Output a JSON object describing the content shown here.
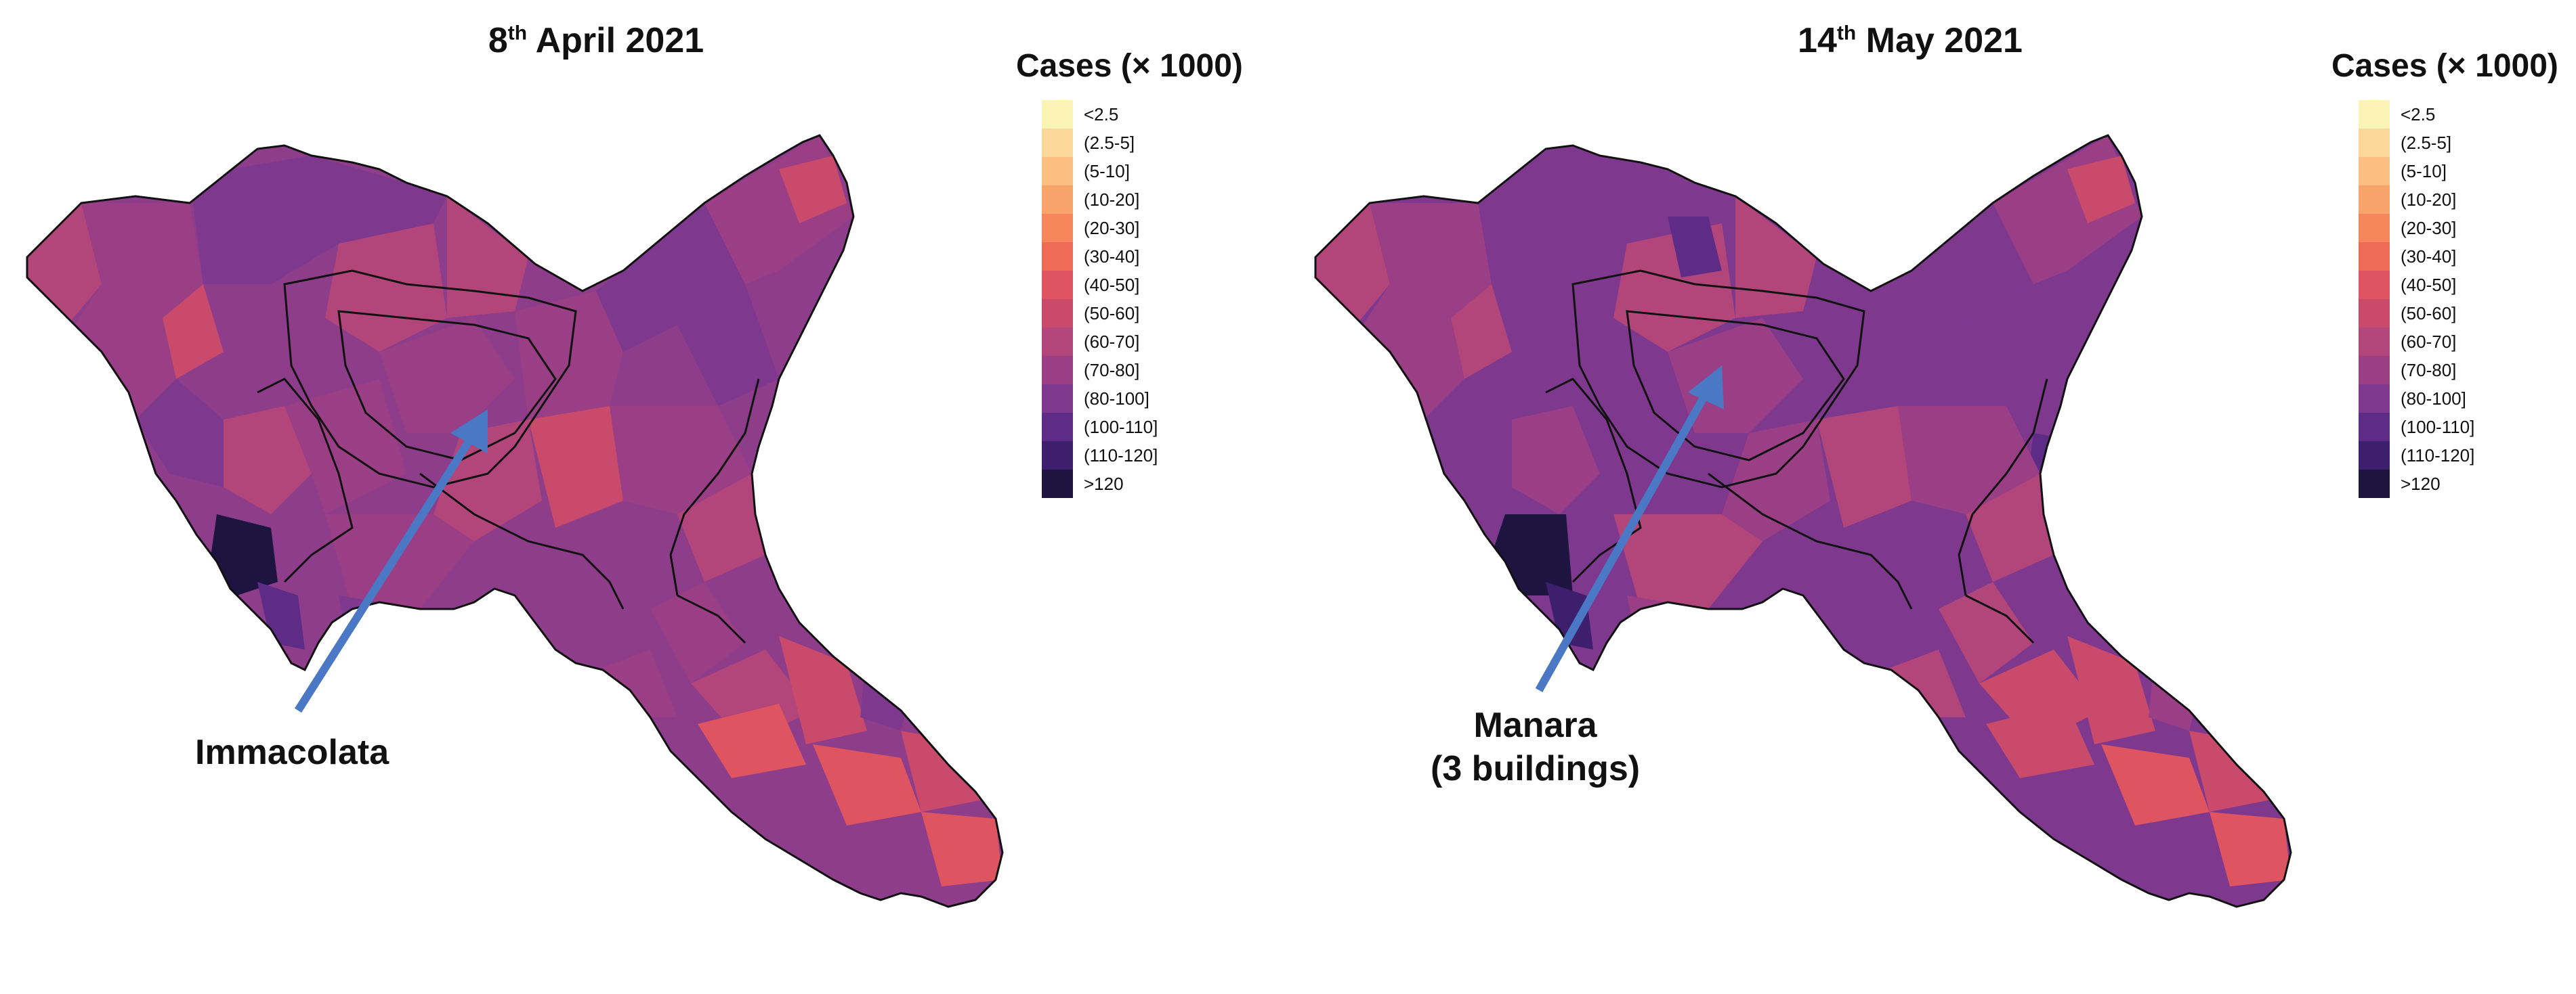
{
  "legend": {
    "title": "Cases (× 1000)",
    "items": [
      {
        "label": "<2.5",
        "color": "#fcf4b6"
      },
      {
        "label": "(2.5-5]",
        "color": "#fbd79a"
      },
      {
        "label": "(5-10]",
        "color": "#fbbf82"
      },
      {
        "label": "(10-20]",
        "color": "#f8a369"
      },
      {
        "label": "(20-30]",
        "color": "#f6875c"
      },
      {
        "label": "(30-40]",
        "color": "#ee6b58"
      },
      {
        "label": "(40-50]",
        "color": "#de5460"
      },
      {
        "label": "(50-60]",
        "color": "#c94a6a"
      },
      {
        "label": "(60-70]",
        "color": "#b2457a"
      },
      {
        "label": "(70-80]",
        "color": "#9a3f86"
      },
      {
        "label": "(80-100]",
        "color": "#7e388e"
      },
      {
        "label": "(100-110]",
        "color": "#5e2b87"
      },
      {
        "label": "(110-120]",
        "color": "#3e1f6d"
      },
      {
        "label": ">120",
        "color": "#1d1440"
      }
    ]
  },
  "panels": [
    {
      "title_day": "8",
      "title_suffix": "th",
      "title_rest": " April 2021",
      "annotation": {
        "lines": [
          "Immacolata"
        ],
        "arrow_color": "#4a78c4"
      }
    },
    {
      "title_day": "14",
      "title_suffix": "th",
      "title_rest": " May 2021",
      "annotation": {
        "lines": [
          "Manara",
          "(3 buildings)"
        ],
        "arrow_color": "#4a78c4"
      }
    }
  ]
}
